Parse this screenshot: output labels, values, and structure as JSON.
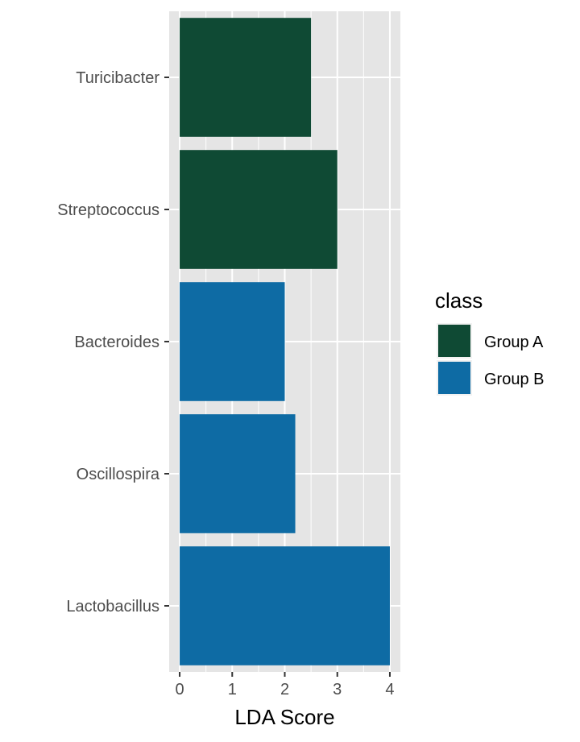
{
  "chart_data": {
    "type": "bar",
    "orientation": "horizontal",
    "categories": [
      "Turicibacter",
      "Streptococcus",
      "Bacteroides",
      "Oscillospira",
      "Lactobacillus"
    ],
    "values": [
      2.5,
      3.0,
      2.0,
      2.2,
      4.0
    ],
    "class": [
      "Group A",
      "Group A",
      "Group B",
      "Group B",
      "Group B"
    ],
    "xlabel": "LDA Score",
    "ylabel": "",
    "xlim": [
      -0.2,
      4.2
    ],
    "xticks": [
      0,
      1,
      2,
      3,
      4
    ],
    "grid": true,
    "legend": {
      "title": "class",
      "position": "right",
      "entries": [
        {
          "label": "Group A",
          "color": "#0F4A34"
        },
        {
          "label": "Group B",
          "color": "#0E6BA4"
        }
      ]
    },
    "colors": {
      "panel_background": "#E5E5E5",
      "grid": "#FFFFFF",
      "Group A": "#0F4A34",
      "Group B": "#0E6BA4"
    }
  }
}
